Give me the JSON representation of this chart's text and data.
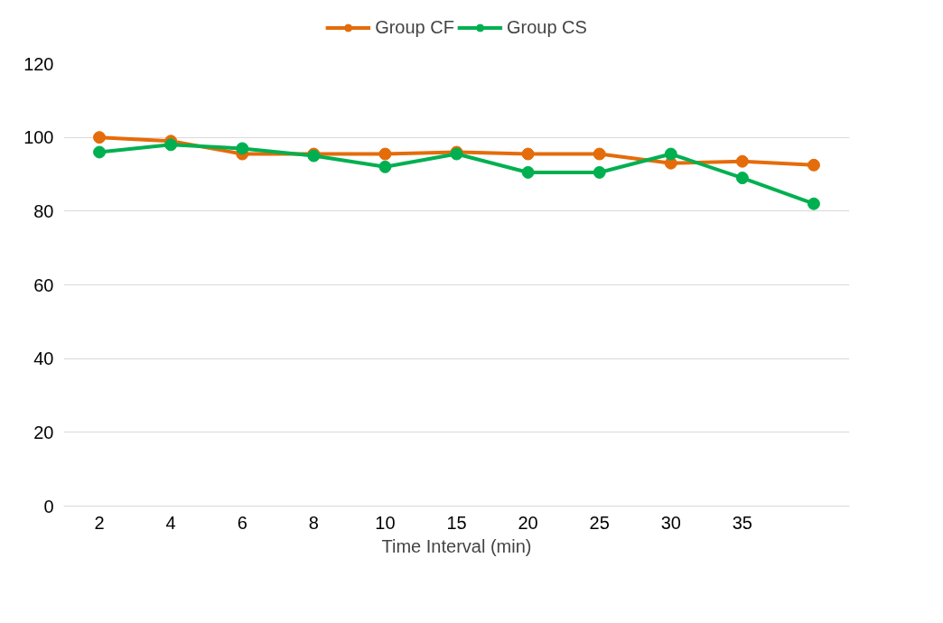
{
  "chart_data": {
    "type": "line",
    "xlabel": "Time Interval (min)",
    "categories": [
      "2",
      "4",
      "6",
      "8",
      "10",
      "15",
      "20",
      "25",
      "30",
      "35",
      null
    ],
    "series": [
      {
        "name": "Group CF",
        "color": "#e46c0a",
        "values": [
          100,
          99,
          95.5,
          95.5,
          95.5,
          96,
          95.5,
          95.5,
          93,
          93.5,
          92.5
        ]
      },
      {
        "name": "Group CS",
        "color": "#00b050",
        "values": [
          96,
          98,
          97,
          95,
          92,
          95.5,
          90.5,
          90.5,
          95.5,
          89,
          82
        ]
      }
    ],
    "ylim": [
      0,
      120
    ],
    "yticks": [
      0,
      20,
      40,
      60,
      80,
      100,
      120
    ],
    "grid": "y",
    "legend": "top",
    "marker": "circle",
    "line_style": "solid"
  }
}
